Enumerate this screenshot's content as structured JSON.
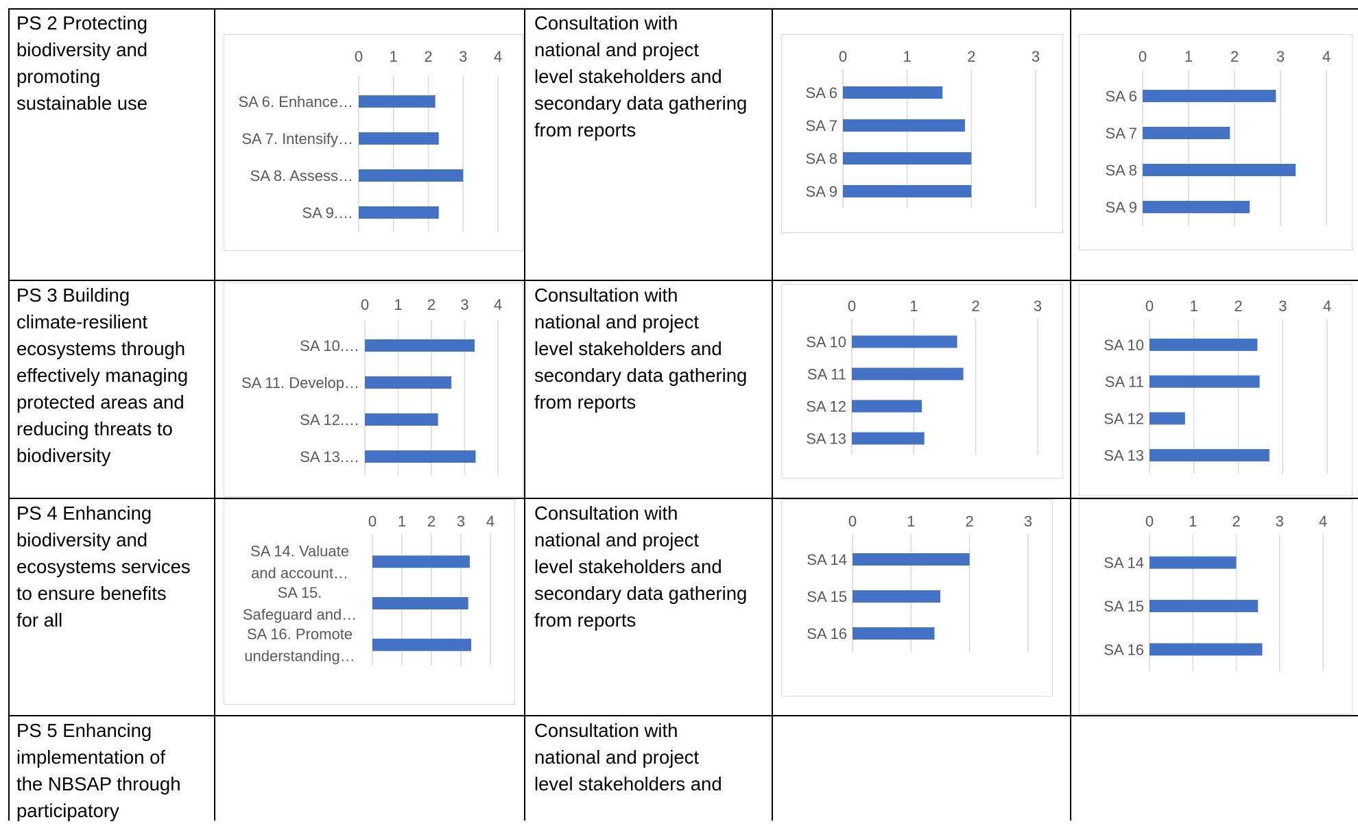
{
  "rows": [
    {
      "goal": "PS 2 Protecting\nbiodiversity and\npromoting\nsustainable use",
      "method": "Consultation with\nnational and project\nlevel stakeholders and\nsecondary data gathering\nfrom reports"
    },
    {
      "goal": "PS 3 Building\nclimate-resilient\necosystems through\neffectively managing\nprotected areas and\nreducing threats to\nbiodiversity",
      "method": "Consultation with\nnational and project\nlevel stakeholders and\nsecondary data gathering\nfrom reports"
    },
    {
      "goal": "PS 4 Enhancing\nbiodiversity and\necosystems services\nto ensure benefits\nfor all",
      "method": "Consultation with\nnational and project\nlevel stakeholders and\nsecondary data gathering\nfrom reports"
    },
    {
      "goal": "PS 5 Enhancing\nimplementation of\nthe NBSAP through\nparticipatory",
      "method": "Consultation with\nnational and project\nlevel stakeholders and"
    }
  ],
  "colors": {
    "bar": "#4472c4",
    "grid": "#d9d9d9",
    "axis_text": "#595959"
  },
  "chart_data": [
    {
      "type": "bar",
      "orientation": "horizontal",
      "xticks": [
        0,
        1,
        2,
        3,
        4
      ],
      "xlim": [
        0,
        4
      ],
      "categories": [
        [
          "SA 6. Enhance…"
        ],
        [
          "SA 7. Intensify…"
        ],
        [
          "SA 8. Assess…"
        ],
        [
          "SA 9.…"
        ]
      ],
      "values": [
        2.2,
        2.3,
        3.0,
        2.3
      ]
    },
    {
      "type": "bar",
      "orientation": "horizontal",
      "xticks": [
        0,
        1,
        2,
        3
      ],
      "xlim": [
        0,
        3
      ],
      "categories": [
        [
          "SA 6"
        ],
        [
          "SA 7"
        ],
        [
          "SA 8"
        ],
        [
          "SA 9"
        ]
      ],
      "values": [
        1.55,
        1.9,
        2.0,
        2.0
      ]
    },
    {
      "type": "bar",
      "orientation": "horizontal",
      "xticks": [
        0,
        1,
        2,
        3,
        4
      ],
      "xlim": [
        0,
        4
      ],
      "categories": [
        [
          "SA 6"
        ],
        [
          "SA 7"
        ],
        [
          "SA 8"
        ],
        [
          "SA 9"
        ]
      ],
      "values": [
        2.9,
        1.9,
        3.33,
        2.33
      ]
    },
    {
      "type": "bar",
      "orientation": "horizontal",
      "xticks": [
        0,
        1,
        2,
        3,
        4
      ],
      "xlim": [
        0,
        4
      ],
      "categories": [
        [
          "SA 10.…"
        ],
        [
          "SA 11. Develop…"
        ],
        [
          "SA 12.…"
        ],
        [
          "SA 13.…"
        ]
      ],
      "values": [
        3.3,
        2.6,
        2.2,
        3.33
      ]
    },
    {
      "type": "bar",
      "orientation": "horizontal",
      "xticks": [
        0,
        1,
        2,
        3
      ],
      "xlim": [
        0,
        3
      ],
      "categories": [
        [
          "SA 10"
        ],
        [
          "SA 11"
        ],
        [
          "SA 12"
        ],
        [
          "SA 13"
        ]
      ],
      "values": [
        1.7,
        1.8,
        1.13,
        1.17
      ]
    },
    {
      "type": "bar",
      "orientation": "horizontal",
      "xticks": [
        0,
        1,
        2,
        3,
        4
      ],
      "xlim": [
        0,
        4
      ],
      "categories": [
        [
          "SA 10"
        ],
        [
          "SA 11"
        ],
        [
          "SA 12"
        ],
        [
          "SA 13"
        ]
      ],
      "values": [
        2.43,
        2.48,
        0.8,
        2.7
      ]
    },
    {
      "type": "bar",
      "orientation": "horizontal",
      "xticks": [
        0,
        1,
        2,
        3,
        4
      ],
      "xlim": [
        0,
        4
      ],
      "categories": [
        [
          "SA 14. Valuate",
          "and account…"
        ],
        [
          "SA 15.",
          "Safeguard and…"
        ],
        [
          "SA 16. Promote",
          "understanding…"
        ]
      ],
      "values": [
        3.3,
        3.25,
        3.35
      ]
    },
    {
      "type": "bar",
      "orientation": "horizontal",
      "xticks": [
        0,
        1,
        2,
        3
      ],
      "xlim": [
        0,
        3
      ],
      "categories": [
        [
          "SA 14"
        ],
        [
          "SA 15"
        ],
        [
          "SA 16"
        ]
      ],
      "values": [
        2.0,
        1.5,
        1.4
      ]
    },
    {
      "type": "bar",
      "orientation": "horizontal",
      "xticks": [
        0,
        1,
        2,
        3,
        4
      ],
      "xlim": [
        0,
        4
      ],
      "categories": [
        [
          "SA 14"
        ],
        [
          "SA 15"
        ],
        [
          "SA 16"
        ]
      ],
      "values": [
        2.0,
        2.5,
        2.6
      ]
    }
  ]
}
